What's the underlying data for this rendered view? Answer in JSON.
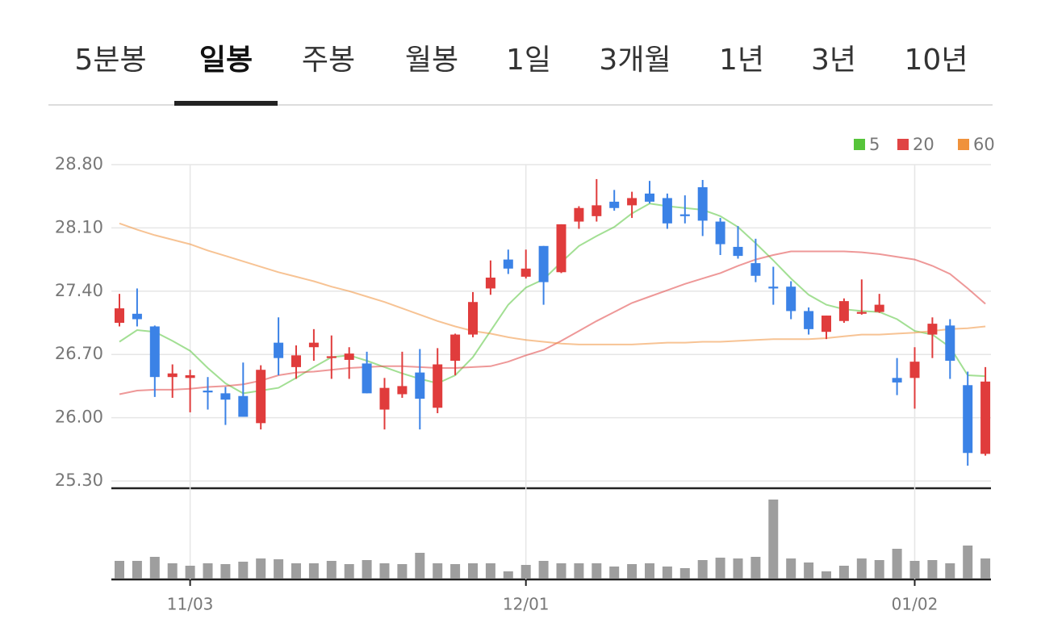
{
  "tabs": {
    "items": [
      "5분봉",
      "일봉",
      "주봉",
      "월봉",
      "1일",
      "3개월",
      "1년",
      "3년",
      "10년"
    ],
    "selected": 1
  },
  "chart_data": {
    "type": "candlestick",
    "categories": [
      null,
      null,
      null,
      null,
      "11/03",
      null,
      null,
      null,
      null,
      null,
      null,
      null,
      null,
      null,
      null,
      null,
      null,
      null,
      null,
      null,
      null,
      null,
      null,
      "12/01",
      null,
      null,
      null,
      null,
      null,
      null,
      null,
      null,
      null,
      null,
      null,
      null,
      null,
      null,
      null,
      null,
      null,
      null,
      null,
      null,
      null,
      "01/02",
      null,
      null,
      null,
      null
    ],
    "open": [
      27.05,
      27.15,
      27.01,
      26.45,
      26.44,
      26.3,
      26.27,
      26.24,
      25.94,
      26.83,
      26.56,
      26.78,
      26.66,
      26.64,
      26.6,
      26.09,
      26.26,
      26.5,
      26.11,
      26.63,
      26.92,
      27.43,
      27.75,
      27.56,
      27.9,
      27.61,
      28.17,
      28.23,
      28.39,
      28.35,
      28.48,
      28.43,
      28.25,
      28.55,
      28.17,
      27.89,
      27.71,
      27.45,
      27.45,
      27.18,
      26.95,
      27.07,
      27.15,
      27.17,
      26.44,
      26.44,
      26.92,
      27.02,
      26.36,
      25.6
    ],
    "high": [
      27.37,
      27.43,
      27.02,
      26.59,
      26.53,
      26.45,
      26.34,
      26.61,
      26.58,
      27.11,
      26.8,
      26.98,
      26.91,
      26.78,
      26.73,
      26.44,
      26.73,
      26.76,
      26.77,
      26.93,
      27.39,
      27.74,
      27.86,
      27.86,
      27.9,
      28.14,
      28.34,
      28.64,
      28.52,
      28.5,
      28.62,
      28.48,
      28.46,
      28.63,
      28.21,
      28.12,
      27.98,
      27.67,
      27.51,
      27.22,
      27.13,
      27.32,
      27.53,
      27.37,
      26.66,
      26.78,
      27.11,
      27.09,
      26.51,
      26.56
    ],
    "low": [
      27.01,
      27.01,
      26.23,
      26.22,
      26.06,
      26.09,
      25.92,
      26.01,
      25.87,
      26.47,
      26.43,
      26.63,
      26.43,
      26.43,
      26.27,
      25.87,
      26.22,
      25.87,
      26.05,
      26.47,
      26.89,
      27.36,
      27.59,
      27.54,
      27.25,
      27.6,
      28.09,
      28.17,
      28.29,
      28.21,
      28.37,
      28.09,
      28.15,
      28.01,
      27.8,
      27.76,
      27.5,
      27.25,
      27.09,
      26.92,
      26.87,
      27.05,
      27.14,
      27.16,
      26.25,
      26.1,
      26.66,
      26.43,
      25.47,
      25.58
    ],
    "close": [
      27.21,
      27.09,
      26.45,
      26.49,
      26.47,
      26.28,
      26.2,
      26.01,
      26.53,
      26.66,
      26.69,
      26.83,
      26.68,
      26.71,
      26.27,
      26.33,
      26.35,
      26.21,
      26.59,
      26.92,
      27.28,
      27.55,
      27.65,
      27.65,
      27.5,
      28.14,
      28.32,
      28.35,
      28.32,
      28.43,
      28.39,
      28.15,
      28.23,
      28.18,
      27.92,
      27.79,
      27.57,
      27.43,
      27.18,
      26.98,
      27.13,
      27.29,
      27.17,
      27.25,
      26.39,
      26.62,
      27.04,
      26.63,
      25.61,
      26.4
    ],
    "up_color": "#e03c3c",
    "down_color": "#3b82e6",
    "ylim": [
      25.3,
      28.8
    ],
    "yticks": [
      {
        "value": 25.3,
        "label": "25.30"
      },
      {
        "value": 26.0,
        "label": "26.00"
      },
      {
        "value": 26.7,
        "label": "26.70"
      },
      {
        "value": 27.4,
        "label": "27.40"
      },
      {
        "value": 28.1,
        "label": "28.10"
      },
      {
        "value": 28.8,
        "label": "28.80"
      }
    ],
    "grid": true,
    "legend": "top-right",
    "series": [
      {
        "name": "5",
        "color": "#56c43a",
        "values": [
          26.84,
          26.97,
          26.95,
          26.85,
          26.74,
          26.55,
          26.38,
          26.27,
          26.3,
          26.33,
          26.44,
          26.56,
          26.67,
          26.69,
          26.63,
          26.56,
          26.49,
          26.43,
          26.38,
          26.47,
          26.67,
          26.96,
          27.25,
          27.44,
          27.53,
          27.72,
          27.9,
          28.01,
          28.11,
          28.26,
          28.37,
          28.34,
          28.32,
          28.3,
          28.23,
          28.11,
          27.93,
          27.74,
          27.54,
          27.36,
          27.25,
          27.2,
          27.18,
          27.17,
          27.09,
          26.96,
          26.92,
          26.78,
          26.47,
          26.46
        ]
      },
      {
        "name": "20",
        "color": "#e04444",
        "values": [
          26.26,
          26.3,
          26.31,
          26.31,
          26.32,
          26.34,
          26.35,
          26.37,
          26.41,
          26.47,
          26.5,
          26.51,
          26.53,
          26.55,
          26.56,
          26.57,
          26.57,
          26.56,
          26.55,
          26.55,
          26.56,
          26.57,
          26.62,
          26.69,
          26.75,
          26.85,
          26.96,
          27.07,
          27.17,
          27.27,
          27.34,
          27.41,
          27.48,
          27.54,
          27.6,
          27.68,
          27.75,
          27.8,
          27.84,
          27.84,
          27.84,
          27.84,
          27.83,
          27.81,
          27.78,
          27.75,
          27.68,
          27.59,
          27.43,
          27.26
        ]
      },
      {
        "name": "60",
        "color": "#f0923c",
        "values": [
          28.15,
          28.08,
          28.02,
          27.97,
          27.92,
          27.85,
          27.79,
          27.73,
          27.67,
          27.61,
          27.56,
          27.51,
          27.45,
          27.4,
          27.34,
          27.28,
          27.21,
          27.14,
          27.07,
          27.01,
          26.96,
          26.93,
          26.89,
          26.86,
          26.84,
          26.82,
          26.81,
          26.81,
          26.81,
          26.81,
          26.82,
          26.83,
          26.83,
          26.84,
          26.84,
          26.85,
          26.86,
          26.87,
          26.87,
          26.87,
          26.88,
          26.9,
          26.92,
          26.92,
          26.93,
          26.94,
          26.96,
          26.98,
          26.99,
          27.01
        ]
      }
    ],
    "volume": {
      "color": "#9e9e9e",
      "values": [
        22,
        22,
        27,
        19,
        16,
        19,
        18,
        21,
        25,
        24,
        19,
        19,
        22,
        18,
        23,
        19,
        18,
        32,
        19,
        18,
        19,
        19,
        9,
        17,
        22,
        19,
        19,
        19,
        15,
        18,
        19,
        15,
        13,
        23,
        26,
        25,
        27,
        98,
        25,
        20,
        9,
        16,
        25,
        23,
        37,
        22,
        23,
        19,
        41,
        25
      ]
    }
  }
}
